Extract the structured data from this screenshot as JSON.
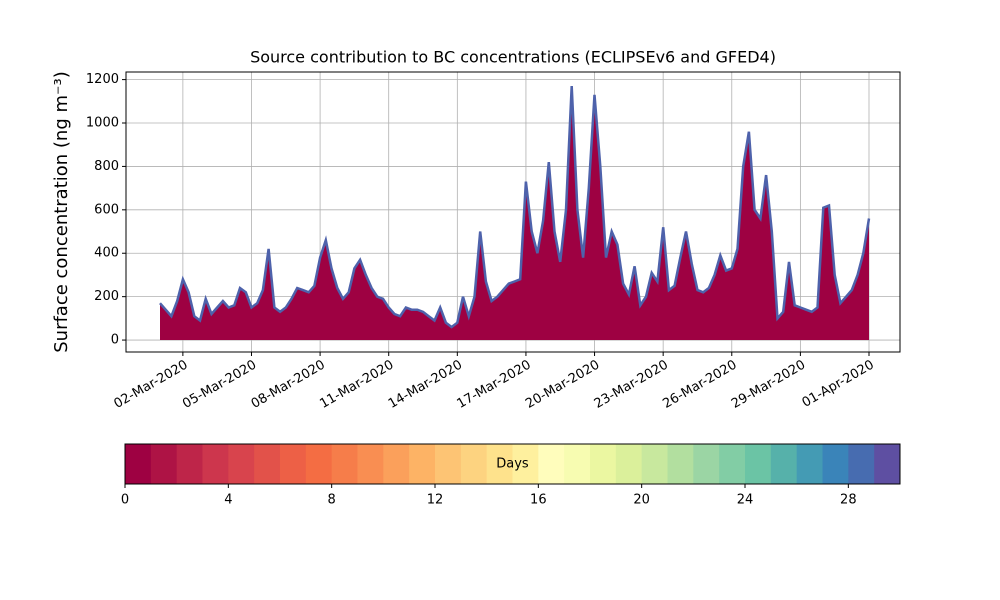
{
  "chart_data": [
    {
      "type": "area",
      "title": "Source contribution to BC concentrations (ECLIPSEv6 and GFED4)",
      "y_label": "Surface concentration (ng m⁻³)",
      "categories": [
        null,
        null,
        null,
        null,
        "02-Mar-2020",
        null,
        null,
        null,
        null,
        null,
        null,
        null,
        null,
        null,
        null,
        null,
        "05-Mar-2020",
        null,
        null,
        null,
        null,
        null,
        null,
        null,
        null,
        null,
        null,
        null,
        "08-Mar-2020",
        null,
        null,
        null,
        null,
        null,
        null,
        null,
        null,
        null,
        null,
        null,
        "11-Mar-2020",
        null,
        null,
        null,
        null,
        null,
        null,
        null,
        null,
        null,
        null,
        null,
        "14-Mar-2020",
        null,
        null,
        null,
        null,
        null,
        null,
        null,
        null,
        null,
        null,
        null,
        "17-Mar-2020",
        null,
        null,
        null,
        null,
        null,
        null,
        null,
        null,
        null,
        null,
        null,
        "20-Mar-2020",
        null,
        null,
        null,
        null,
        null,
        null,
        null,
        null,
        null,
        null,
        null,
        "23-Mar-2020",
        null,
        null,
        null,
        null,
        null,
        null,
        null,
        null,
        null,
        null,
        null,
        "26-Mar-2020",
        null,
        null,
        null,
        null,
        null,
        null,
        null,
        null,
        null,
        null,
        null,
        "29-Mar-2020",
        null,
        null,
        null,
        null,
        null,
        null,
        null,
        null,
        null,
        null,
        null,
        "01-Apr-2020"
      ],
      "series": [
        {
          "color": "#9e0142",
          "line_color": "#4e62ab",
          "values": [
            170,
            140,
            110,
            180,
            280,
            220,
            110,
            90,
            190,
            120,
            150,
            180,
            150,
            160,
            240,
            220,
            150,
            170,
            230,
            420,
            150,
            130,
            150,
            190,
            240,
            230,
            220,
            250,
            380,
            460,
            330,
            240,
            190,
            220,
            330,
            370,
            300,
            240,
            200,
            190,
            150,
            120,
            110,
            150,
            140,
            140,
            130,
            110,
            90,
            150,
            80,
            60,
            80,
            200,
            110,
            200,
            500,
            270,
            180,
            200,
            230,
            260,
            270,
            280,
            730,
            500,
            400,
            550,
            820,
            500,
            360,
            600,
            1170,
            600,
            380,
            700,
            1130,
            800,
            380,
            500,
            440,
            260,
            210,
            340,
            160,
            200,
            310,
            270,
            520,
            230,
            250,
            380,
            500,
            350,
            230,
            220,
            240,
            300,
            390,
            320,
            330,
            420,
            800,
            960,
            600,
            560,
            760,
            500,
            100,
            130,
            360,
            160,
            150,
            140,
            130,
            150,
            610,
            620,
            300,
            170,
            200,
            230,
            300,
            400,
            560
          ]
        }
      ],
      "ylim": [
        -55,
        1235
      ],
      "yticks": [
        0,
        200,
        400,
        600,
        800,
        1000,
        1200
      ],
      "grid": true
    },
    {
      "type": "colorbar",
      "label": "Days",
      "lim": [
        0,
        30
      ],
      "ticks": [
        0,
        4,
        8,
        12,
        16,
        20,
        24,
        28
      ],
      "colors": [
        "#9e0142",
        "#ae1345",
        "#be2549",
        "#cd364d",
        "#d8444d",
        "#e2524a",
        "#ed6046",
        "#f46d43",
        "#f67d4a",
        "#f98e52",
        "#fba05b",
        "#fdb365",
        "#fdc474",
        "#fdd380",
        "#fee28c",
        "#fef09e",
        "#fffdbc",
        "#f7fcb1",
        "#ebf7a1",
        "#dbf09b",
        "#c8e89e",
        "#b2df9f",
        "#9bd5a4",
        "#82cda5",
        "#6bc4a5",
        "#56b1aa",
        "#449bb4",
        "#3a84b9",
        "#476cb0",
        "#5e4fa2"
      ]
    }
  ]
}
